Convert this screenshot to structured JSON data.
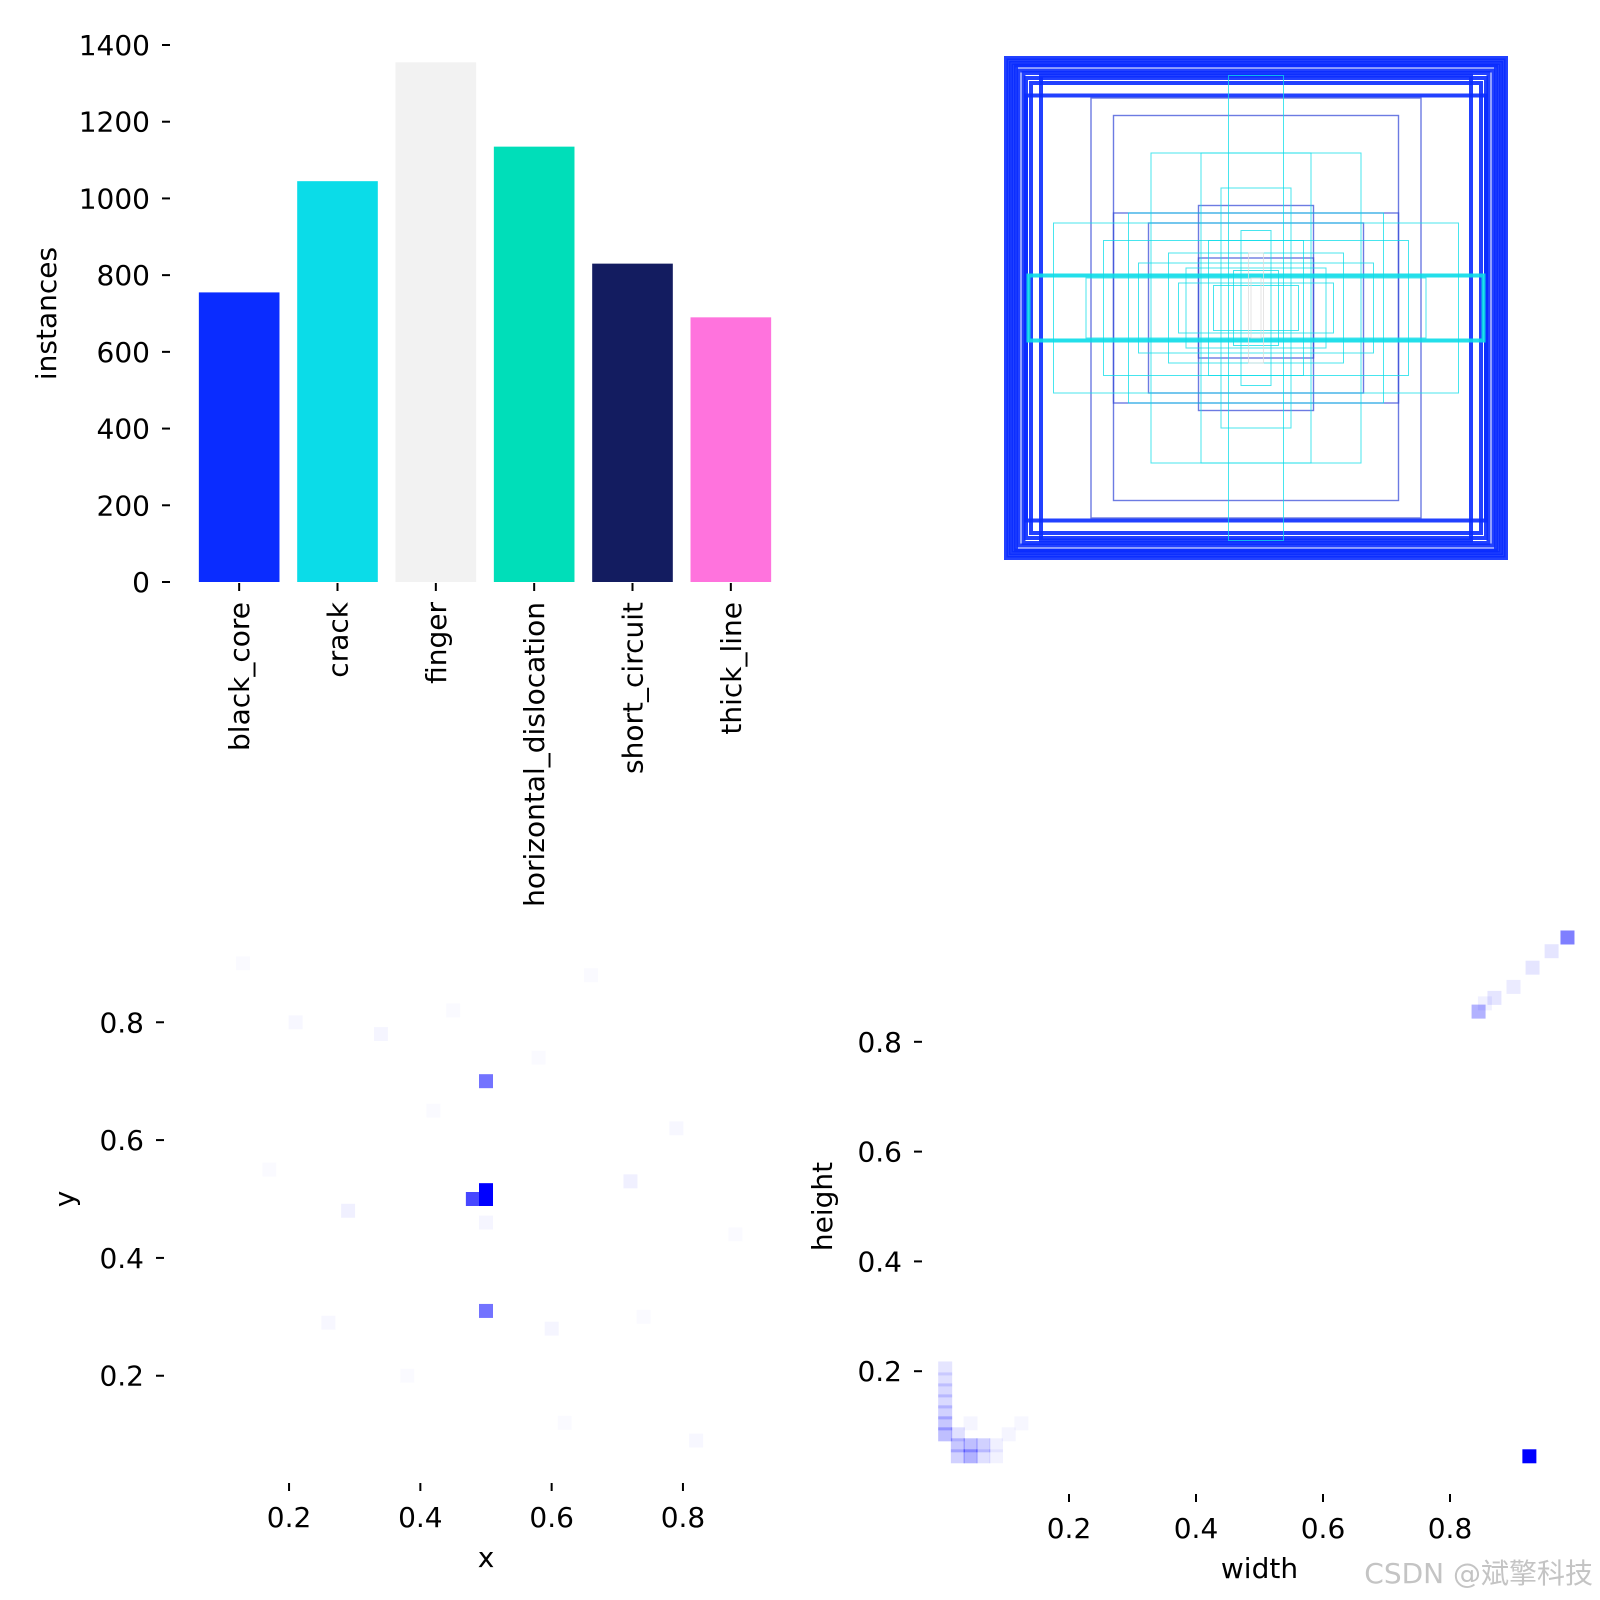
{
  "watermark": "CSDN @斌擎科技",
  "chart_data": [
    {
      "type": "bar",
      "ylabel": "instances",
      "xlabel": "",
      "ylim": [
        0,
        1400
      ],
      "yticks": [
        0,
        200,
        400,
        600,
        800,
        1000,
        1200,
        1400
      ],
      "categories": [
        "black_core",
        "crack",
        "finger",
        "horizontal_dislocation",
        "short_circuit",
        "thick_line"
      ],
      "values": [
        755,
        1045,
        1355,
        1135,
        830,
        690
      ],
      "colors": [
        "#0a2cff",
        "#0bdce8",
        "#f2f2f2",
        "#00deb9",
        "#131c60",
        "#ff73dd"
      ]
    },
    {
      "type": "box-overlay",
      "description_colors": [
        "#0a2cff",
        "#0bdce8",
        "#dcdcdc"
      ],
      "boxes": [
        {
          "w": 1.0,
          "h": 1.0,
          "color": "#0a2cff"
        },
        {
          "w": 0.99,
          "h": 0.99,
          "color": "#0a2cff"
        },
        {
          "w": 0.98,
          "h": 0.98,
          "color": "#0a2cff"
        },
        {
          "w": 0.97,
          "h": 0.97,
          "color": "#0a2cff"
        },
        {
          "w": 0.96,
          "h": 0.97,
          "color": "#0a2cff"
        },
        {
          "w": 0.95,
          "h": 0.95,
          "color": "#0a2cff"
        },
        {
          "w": 0.93,
          "h": 0.94,
          "color": "#0a2cff"
        },
        {
          "w": 0.92,
          "h": 0.92,
          "color": "#0a2cff"
        },
        {
          "w": 0.9,
          "h": 0.9,
          "color": "#0a2cff"
        },
        {
          "w": 0.86,
          "h": 0.93,
          "color": "#0a2cff"
        },
        {
          "w": 0.92,
          "h": 0.85,
          "color": "#0a2cff"
        },
        {
          "w": 0.66,
          "h": 0.84,
          "color": "#3b4fd8"
        },
        {
          "w": 0.57,
          "h": 0.77,
          "color": "#3b4fd8"
        },
        {
          "w": 0.57,
          "h": 0.38,
          "color": "#3b4fd8"
        },
        {
          "w": 0.43,
          "h": 0.34,
          "color": "#3b4fd8"
        },
        {
          "w": 0.23,
          "h": 0.41,
          "color": "#3b4fd8"
        },
        {
          "w": 0.23,
          "h": 0.2,
          "color": "#3b4fd8"
        },
        {
          "w": 0.11,
          "h": 0.93,
          "color": "#0bdce8"
        },
        {
          "w": 0.22,
          "h": 0.62,
          "color": "#0bdce8"
        },
        {
          "w": 0.42,
          "h": 0.62,
          "color": "#0bdce8"
        },
        {
          "w": 0.51,
          "h": 0.38,
          "color": "#0bdce8"
        },
        {
          "w": 0.61,
          "h": 0.27,
          "color": "#0bdce8"
        },
        {
          "w": 0.81,
          "h": 0.34,
          "color": "#0bdce8"
        },
        {
          "w": 0.68,
          "h": 0.12,
          "color": "#0bdce8"
        },
        {
          "w": 0.91,
          "h": 0.13,
          "color": "#0bdce8"
        },
        {
          "w": 0.35,
          "h": 0.22,
          "color": "#0bdce8"
        },
        {
          "w": 0.28,
          "h": 0.16,
          "color": "#0bdce8"
        },
        {
          "w": 0.19,
          "h": 0.27,
          "color": "#0bdce8"
        },
        {
          "w": 0.14,
          "h": 0.48,
          "color": "#0bdce8"
        },
        {
          "w": 0.31,
          "h": 0.1,
          "color": "#0bdce8"
        },
        {
          "w": 0.06,
          "h": 0.31,
          "color": "#0bdce8"
        },
        {
          "w": 0.47,
          "h": 0.18,
          "color": "#0bdce8"
        },
        {
          "w": 0.17,
          "h": 0.09,
          "color": "#0bdce8"
        },
        {
          "w": 0.09,
          "h": 0.15,
          "color": "#0bdce8"
        },
        {
          "w": 0.03,
          "h": 0.22,
          "color": "#dcdcdc"
        },
        {
          "w": 0.02,
          "h": 0.12,
          "color": "#dcdcdc"
        }
      ]
    },
    {
      "type": "heatmap",
      "xlabel": "x",
      "ylabel": "y",
      "xlim": [
        0.04,
        0.96
      ],
      "ylim": [
        0.04,
        0.96
      ],
      "xticks": [
        0.2,
        0.4,
        0.6,
        0.8
      ],
      "yticks": [
        0.2,
        0.4,
        0.6,
        0.8
      ],
      "color": "#0000ff",
      "cells": [
        {
          "x": 0.5,
          "y": 0.515,
          "v": 1.0
        },
        {
          "x": 0.5,
          "y": 0.5,
          "v": 1.0
        },
        {
          "x": 0.48,
          "y": 0.5,
          "v": 0.72
        },
        {
          "x": 0.5,
          "y": 0.7,
          "v": 0.55
        },
        {
          "x": 0.5,
          "y": 0.31,
          "v": 0.55
        },
        {
          "x": 0.29,
          "y": 0.48,
          "v": 0.06
        },
        {
          "x": 0.72,
          "y": 0.53,
          "v": 0.06
        },
        {
          "x": 0.5,
          "y": 0.46,
          "v": 0.04
        },
        {
          "x": 0.34,
          "y": 0.78,
          "v": 0.04
        },
        {
          "x": 0.6,
          "y": 0.28,
          "v": 0.04
        },
        {
          "x": 0.21,
          "y": 0.8,
          "v": 0.03
        },
        {
          "x": 0.79,
          "y": 0.62,
          "v": 0.03
        },
        {
          "x": 0.26,
          "y": 0.29,
          "v": 0.03
        },
        {
          "x": 0.82,
          "y": 0.09,
          "v": 0.03
        },
        {
          "x": 0.17,
          "y": 0.55,
          "v": 0.02
        },
        {
          "x": 0.42,
          "y": 0.65,
          "v": 0.02
        },
        {
          "x": 0.66,
          "y": 0.88,
          "v": 0.02
        },
        {
          "x": 0.74,
          "y": 0.3,
          "v": 0.02
        },
        {
          "x": 0.38,
          "y": 0.2,
          "v": 0.02
        },
        {
          "x": 0.58,
          "y": 0.74,
          "v": 0.02
        },
        {
          "x": 0.13,
          "y": 0.9,
          "v": 0.02
        },
        {
          "x": 0.88,
          "y": 0.44,
          "v": 0.02
        },
        {
          "x": 0.45,
          "y": 0.82,
          "v": 0.02
        },
        {
          "x": 0.62,
          "y": 0.12,
          "v": 0.02
        }
      ]
    },
    {
      "type": "heatmap",
      "xlabel": "width",
      "ylabel": "height",
      "xlim": [
        0.0,
        1.0
      ],
      "ylim": [
        0.0,
        1.0
      ],
      "xticks": [
        0.2,
        0.4,
        0.6,
        0.8
      ],
      "yticks": [
        0.2,
        0.4,
        0.6,
        0.8
      ],
      "color": "#0000ff",
      "cells": [
        {
          "x": 0.925,
          "y": 0.045,
          "v": 1.0
        },
        {
          "x": 0.985,
          "y": 0.99,
          "v": 0.5
        },
        {
          "x": 0.845,
          "y": 0.855,
          "v": 0.3
        },
        {
          "x": 0.96,
          "y": 0.965,
          "v": 0.1
        },
        {
          "x": 0.93,
          "y": 0.935,
          "v": 0.1
        },
        {
          "x": 0.9,
          "y": 0.9,
          "v": 0.08
        },
        {
          "x": 0.87,
          "y": 0.88,
          "v": 0.1
        },
        {
          "x": 0.855,
          "y": 0.87,
          "v": 0.06
        },
        {
          "x": 0.005,
          "y": 0.205,
          "v": 0.1
        },
        {
          "x": 0.005,
          "y": 0.185,
          "v": 0.12
        },
        {
          "x": 0.005,
          "y": 0.165,
          "v": 0.15
        },
        {
          "x": 0.005,
          "y": 0.145,
          "v": 0.15
        },
        {
          "x": 0.005,
          "y": 0.125,
          "v": 0.18
        },
        {
          "x": 0.005,
          "y": 0.105,
          "v": 0.22
        },
        {
          "x": 0.005,
          "y": 0.085,
          "v": 0.25
        },
        {
          "x": 0.025,
          "y": 0.065,
          "v": 0.22
        },
        {
          "x": 0.025,
          "y": 0.045,
          "v": 0.18
        },
        {
          "x": 0.045,
          "y": 0.065,
          "v": 0.25
        },
        {
          "x": 0.045,
          "y": 0.045,
          "v": 0.3
        },
        {
          "x": 0.065,
          "y": 0.065,
          "v": 0.18
        },
        {
          "x": 0.065,
          "y": 0.045,
          "v": 0.12
        },
        {
          "x": 0.085,
          "y": 0.065,
          "v": 0.06
        },
        {
          "x": 0.105,
          "y": 0.085,
          "v": 0.04
        },
        {
          "x": 0.025,
          "y": 0.085,
          "v": 0.12
        },
        {
          "x": 0.045,
          "y": 0.105,
          "v": 0.04
        },
        {
          "x": 0.125,
          "y": 0.105,
          "v": 0.03
        },
        {
          "x": 0.085,
          "y": 0.045,
          "v": 0.05
        }
      ]
    }
  ]
}
